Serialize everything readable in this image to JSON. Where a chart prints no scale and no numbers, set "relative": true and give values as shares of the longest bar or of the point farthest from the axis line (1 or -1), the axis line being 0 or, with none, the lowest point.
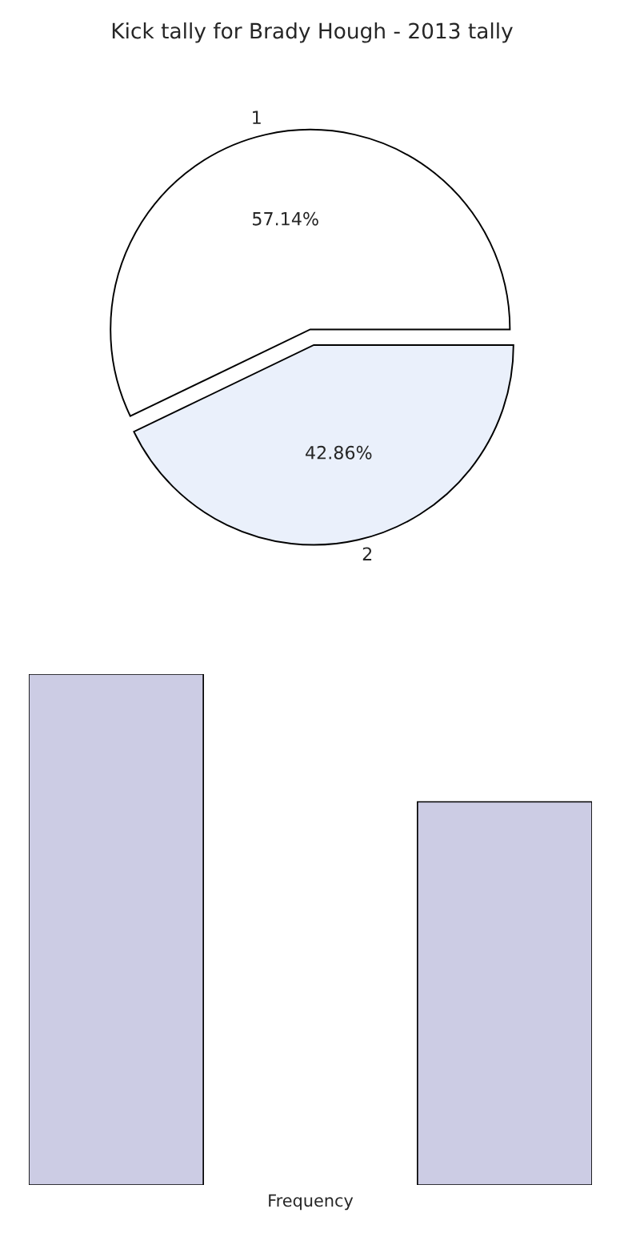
{
  "chart_data": [
    {
      "type": "pie",
      "title": "Kick tally for Brady Hough - 2013 tally",
      "categories": [
        "1",
        "2"
      ],
      "values": [
        57.14,
        42.86
      ],
      "colors": [
        "#ffffff",
        "#eaf0fb"
      ],
      "value_labels": [
        "57.14%",
        "42.86%"
      ],
      "legend": false
    },
    {
      "type": "bar",
      "relative": true,
      "categories": [
        null,
        null
      ],
      "values": [
        1,
        0.75
      ],
      "color": "#ccccE4",
      "xlabel": "Frequency",
      "tick_labels": false,
      "legend": false
    }
  ]
}
